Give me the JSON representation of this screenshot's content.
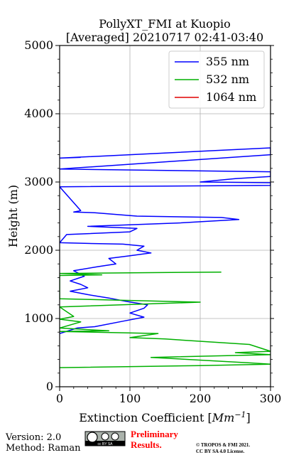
{
  "title_line1": "PollyXT_FMI at Kuopio",
  "title_line2": "[Averaged] 20210717 02:41-03:40",
  "footer": {
    "version": "Version: 2.0",
    "method": "Method: Raman",
    "preliminary_1": "Preliminary",
    "preliminary_2": "Results.",
    "copyright": "© TROPOS & FMI 2021.",
    "license": "CC BY SA 4.0 License.",
    "cc_badge": "cc BY SA",
    "preliminary_color": "#ff0000"
  },
  "chart_data": {
    "type": "line",
    "xlabel": "Extinction Coefficient [Mm⁻¹]",
    "ylabel": "Height (m)",
    "xlim": [
      0,
      300
    ],
    "ylim": [
      0,
      5000
    ],
    "x_ticks": [
      0,
      100,
      200,
      300
    ],
    "y_ticks": [
      0,
      1000,
      2000,
      3000,
      4000,
      5000
    ],
    "grid": true,
    "legend_position": "top-right",
    "series": [
      {
        "name": "355 nm",
        "color": "#0000ff",
        "points": [
          [
            0,
            780
          ],
          [
            25,
            860
          ],
          [
            50,
            880
          ],
          [
            90,
            960
          ],
          [
            120,
            1020
          ],
          [
            100,
            1080
          ],
          [
            120,
            1150
          ],
          [
            125,
            1200
          ],
          [
            95,
            1250
          ],
          [
            70,
            1300
          ],
          [
            40,
            1350
          ],
          [
            15,
            1400
          ],
          [
            40,
            1450
          ],
          [
            30,
            1500
          ],
          [
            15,
            1550
          ],
          [
            35,
            1620
          ],
          [
            20,
            1700
          ],
          [
            55,
            1760
          ],
          [
            80,
            1800
          ],
          [
            70,
            1880
          ],
          [
            100,
            1920
          ],
          [
            130,
            1960
          ],
          [
            110,
            2000
          ],
          [
            120,
            2060
          ],
          [
            90,
            2090
          ],
          [
            40,
            2100
          ],
          [
            0,
            2110
          ],
          [
            10,
            2230
          ],
          [
            100,
            2270
          ],
          [
            110,
            2320
          ],
          [
            40,
            2350
          ],
          [
            170,
            2400
          ],
          [
            255,
            2450
          ],
          [
            230,
            2480
          ],
          [
            110,
            2500
          ],
          [
            50,
            2550
          ],
          [
            20,
            2560
          ],
          [
            30,
            2580
          ],
          [
            0,
            2930
          ],
          [
            300,
            2950
          ],
          [
            300,
            2990
          ],
          [
            200,
            3000
          ],
          [
            250,
            3050
          ],
          [
            300,
            3080
          ],
          [
            300,
            3150
          ],
          [
            0,
            3190
          ],
          [
            300,
            3400
          ],
          [
            300,
            3500
          ],
          [
            0,
            3350
          ],
          [
            30,
            3360
          ]
        ]
      },
      {
        "name": "532 nm",
        "color": "#00b000",
        "points": [
          [
            0,
            280
          ],
          [
            200,
            310
          ],
          [
            300,
            330
          ],
          [
            270,
            350
          ],
          [
            130,
            430
          ],
          [
            300,
            470
          ],
          [
            250,
            500
          ],
          [
            300,
            520
          ],
          [
            270,
            620
          ],
          [
            150,
            700
          ],
          [
            100,
            720
          ],
          [
            140,
            780
          ],
          [
            0,
            810
          ],
          [
            70,
            820
          ],
          [
            0,
            860
          ],
          [
            30,
            950
          ],
          [
            0,
            990
          ],
          [
            20,
            1030
          ],
          [
            0,
            1170
          ],
          [
            200,
            1240
          ],
          [
            0,
            1290
          ],
          [
            0,
            1630
          ],
          [
            60,
            1640
          ],
          [
            0,
            1660
          ],
          [
            230,
            1680
          ]
        ]
      },
      {
        "name": "1064 nm",
        "color": "#e00000",
        "points": []
      }
    ]
  }
}
